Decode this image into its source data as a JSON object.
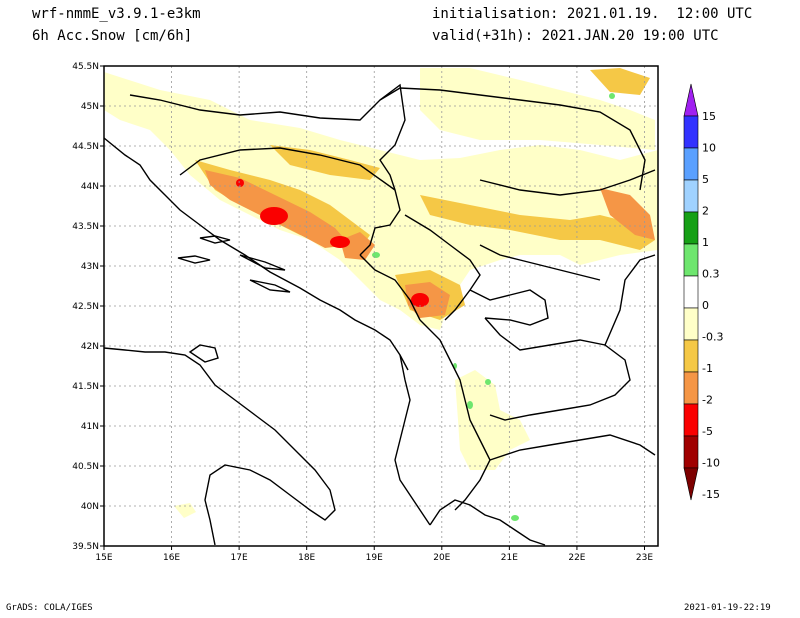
{
  "header": {
    "model": "wrf-nmmE_v3.9.1-e3km",
    "field": "6h Acc.Snow [cm/6h]",
    "init": "initialisation: 2021.01.19.  12:00 UTC",
    "valid": "valid(+31h): 2021.JAN.20 19:00 UTC"
  },
  "footer": {
    "left": "GrADS: COLA/IGES",
    "right": "2021-01-19-22:19"
  },
  "map": {
    "lat_labels": [
      "45.5N",
      "45N",
      "44.5N",
      "44N",
      "43.5N",
      "43N",
      "42.5N",
      "42N",
      "41.5N",
      "41N",
      "40.5N",
      "40N",
      "39.5N"
    ],
    "lon_labels": [
      "15E",
      "16E",
      "17E",
      "18E",
      "19E",
      "20E",
      "21E",
      "22E",
      "23E"
    ],
    "lat_range": [
      39.5,
      45.5
    ],
    "lon_range": [
      15,
      23.2
    ],
    "grid": "dotted"
  },
  "legend": {
    "labels": [
      "15",
      "10",
      "5",
      "2",
      "1",
      "0.3",
      "0",
      "-0.3",
      "-1",
      "-2",
      "-5",
      "-10",
      "-15"
    ],
    "colors": [
      "#a020f0",
      "#3232ff",
      "#5aa0ff",
      "#a0d2ff",
      "#16a016",
      "#6ee66e",
      "#ffffff",
      "#ffffc8",
      "#f5c846",
      "#f59646",
      "#fa0000",
      "#a00000",
      "#7d0000"
    ]
  }
}
